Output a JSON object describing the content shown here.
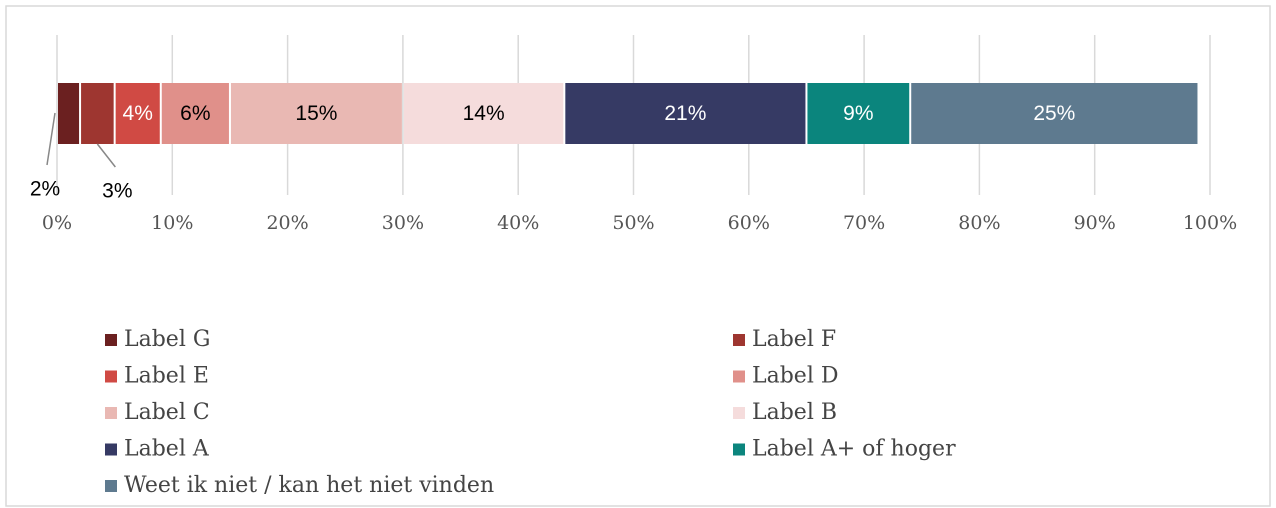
{
  "chart_data": {
    "type": "stacked-bar",
    "series": [
      {
        "name": "Label G",
        "color": "#6b2020",
        "values": [
          2
        ],
        "value_labels": [
          "2%"
        ]
      },
      {
        "name": "Label F",
        "color": "#9e3630",
        "values": [
          3
        ],
        "value_labels": [
          "3%"
        ]
      },
      {
        "name": "Label E",
        "color": "#d04a44",
        "values": [
          4
        ],
        "value_labels": [
          "4%"
        ]
      },
      {
        "name": "Label D",
        "color": "#e0908a",
        "values": [
          6
        ],
        "value_labels": [
          "6%"
        ]
      },
      {
        "name": "Label C",
        "color": "#e9b8b3",
        "values": [
          15
        ],
        "value_labels": [
          "15%"
        ]
      },
      {
        "name": "Label B",
        "color": "#f5dcdc",
        "values": [
          14
        ],
        "value_labels": [
          "14%"
        ]
      },
      {
        "name": "Label A",
        "color": "#363a64",
        "values": [
          21
        ],
        "value_labels": [
          "21%"
        ]
      },
      {
        "name": "Label A+ of hoger",
        "color": "#0b857d",
        "values": [
          9
        ],
        "value_labels": [
          "9%"
        ]
      },
      {
        "name": "Weet ik niet / kan het niet vinden",
        "color": "#5e7a8f",
        "values": [
          25
        ],
        "value_labels": [
          "25%"
        ]
      }
    ],
    "xlim": [
      0,
      100
    ],
    "xticks": [
      {
        "value": 0,
        "label": "0%"
      },
      {
        "value": 10,
        "label": "10%"
      },
      {
        "value": 20,
        "label": "20%"
      },
      {
        "value": 30,
        "label": "30%"
      },
      {
        "value": 40,
        "label": "40%"
      },
      {
        "value": 50,
        "label": "50%"
      },
      {
        "value": 60,
        "label": "60%"
      },
      {
        "value": 70,
        "label": "70%"
      },
      {
        "value": 80,
        "label": "80%"
      },
      {
        "value": 90,
        "label": "90%"
      },
      {
        "value": 100,
        "label": "100%"
      }
    ],
    "grid": true,
    "legend": "bottom"
  }
}
